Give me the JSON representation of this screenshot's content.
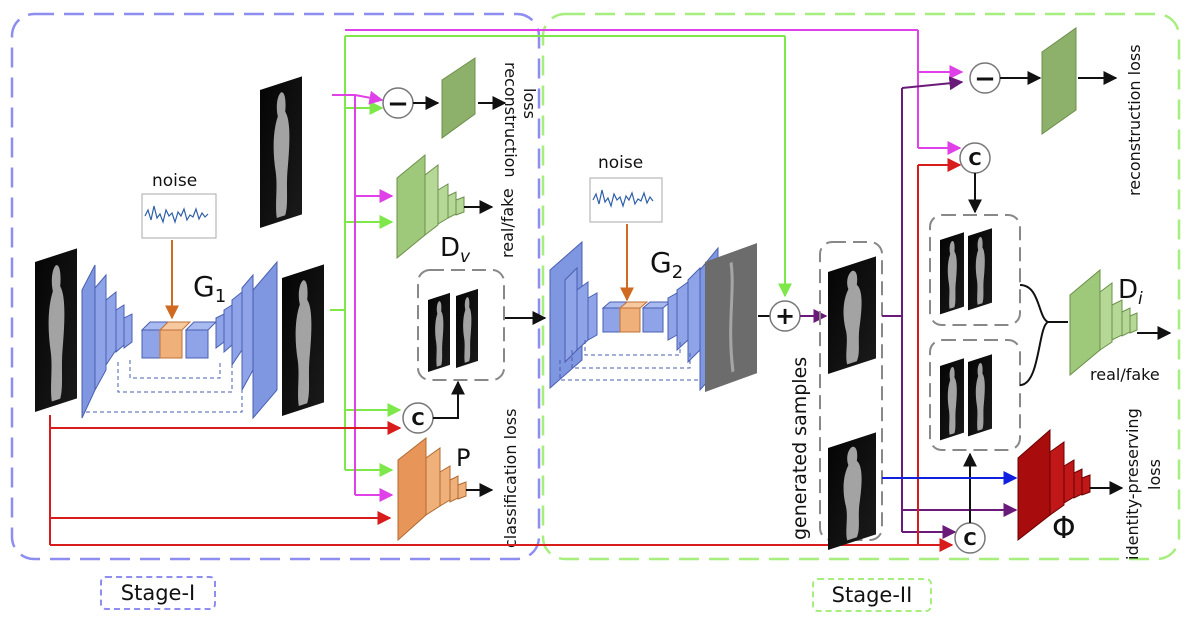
{
  "stage1": {
    "label": "Stage-I",
    "border_color": "#8e8ef0"
  },
  "stage2": {
    "label": "Stage-II",
    "border_color": "#a6ee7e"
  },
  "noise_label": "noise",
  "generators": {
    "g1": "G",
    "g1_sub": "1",
    "g2": "G",
    "g2_sub": "2"
  },
  "discriminators": {
    "dv": "D",
    "dv_sub": "v",
    "di": "D",
    "di_sub": "i",
    "p": "P",
    "phi": "Φ"
  },
  "losses": {
    "recon1_line1": "reconstruction",
    "recon1_line2": "loss",
    "real_fake_1": "real/fake",
    "classification": "classification loss",
    "recon2": "reconstruction loss",
    "real_fake_2": "real/fake",
    "identity_line1": "identity-preserving",
    "identity_line2": "loss"
  },
  "generated_samples": "generated samples",
  "ops": {
    "subtract": "−",
    "concat": "C",
    "add": "+"
  },
  "colors": {
    "magenta": "#e040e8",
    "green_arrow": "#7ee84a",
    "red": "#d81b1b",
    "purple": "#6a1b7a",
    "blue": "#1020e0",
    "generator_blue": "#7f96e0",
    "generator_orange": "#f0b07a",
    "disc_green": "#9ec87a",
    "p_orange": "#f0b07a",
    "phi_red": "#b01010"
  }
}
